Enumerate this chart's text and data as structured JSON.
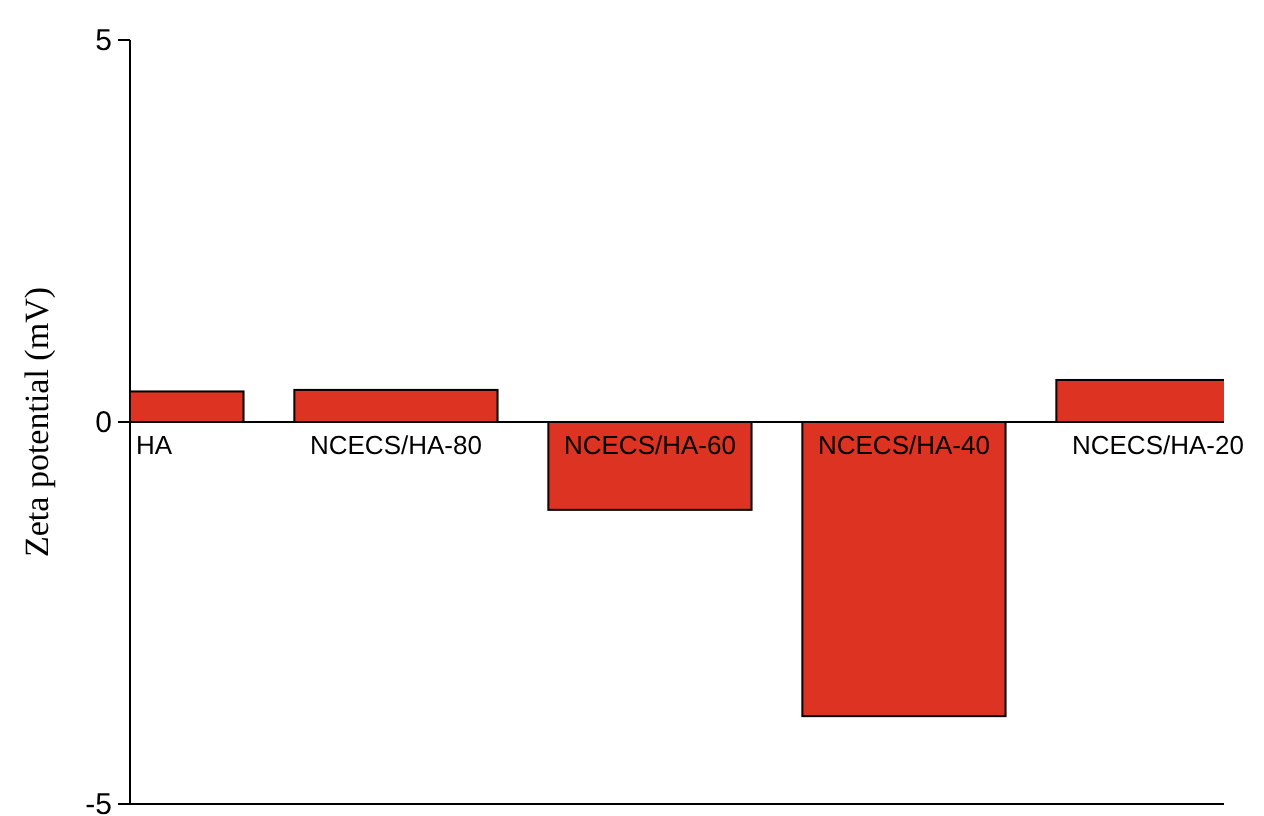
{
  "chart_data": {
    "type": "bar",
    "ylabel": "Zeta potential (mV)",
    "categories": [
      "HA",
      "NCECS/HA-80",
      "NCECS/HA-60",
      "NCECS/HA-40",
      "NCECS/HA-20"
    ],
    "values": [
      0.4,
      0.42,
      -1.15,
      -3.85,
      0.55
    ],
    "color": "#dd3322",
    "ylim": [
      -5,
      5
    ],
    "yticks": [
      -5,
      0,
      5
    ],
    "grid": false
  }
}
